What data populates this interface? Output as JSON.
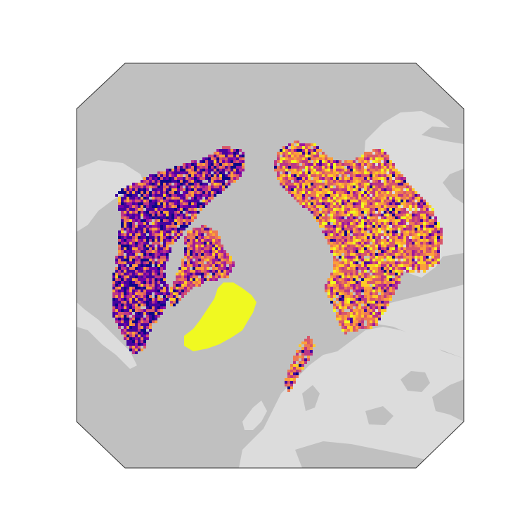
{
  "map": {
    "projection": "north-polar-stereographic",
    "colormap": "plasma",
    "colors": {
      "ocean": "#c0c0c0",
      "land": "#dcdcdc",
      "frame": "#333333",
      "background": "#ffffff",
      "greenland_value": "#f0f921"
    },
    "plasma_stops": [
      "#0d0887",
      "#46039f",
      "#7201a8",
      "#9c179e",
      "#bd3786",
      "#d8576b",
      "#ed7953",
      "#fb9f3a",
      "#fdca26",
      "#f0f921"
    ]
  }
}
